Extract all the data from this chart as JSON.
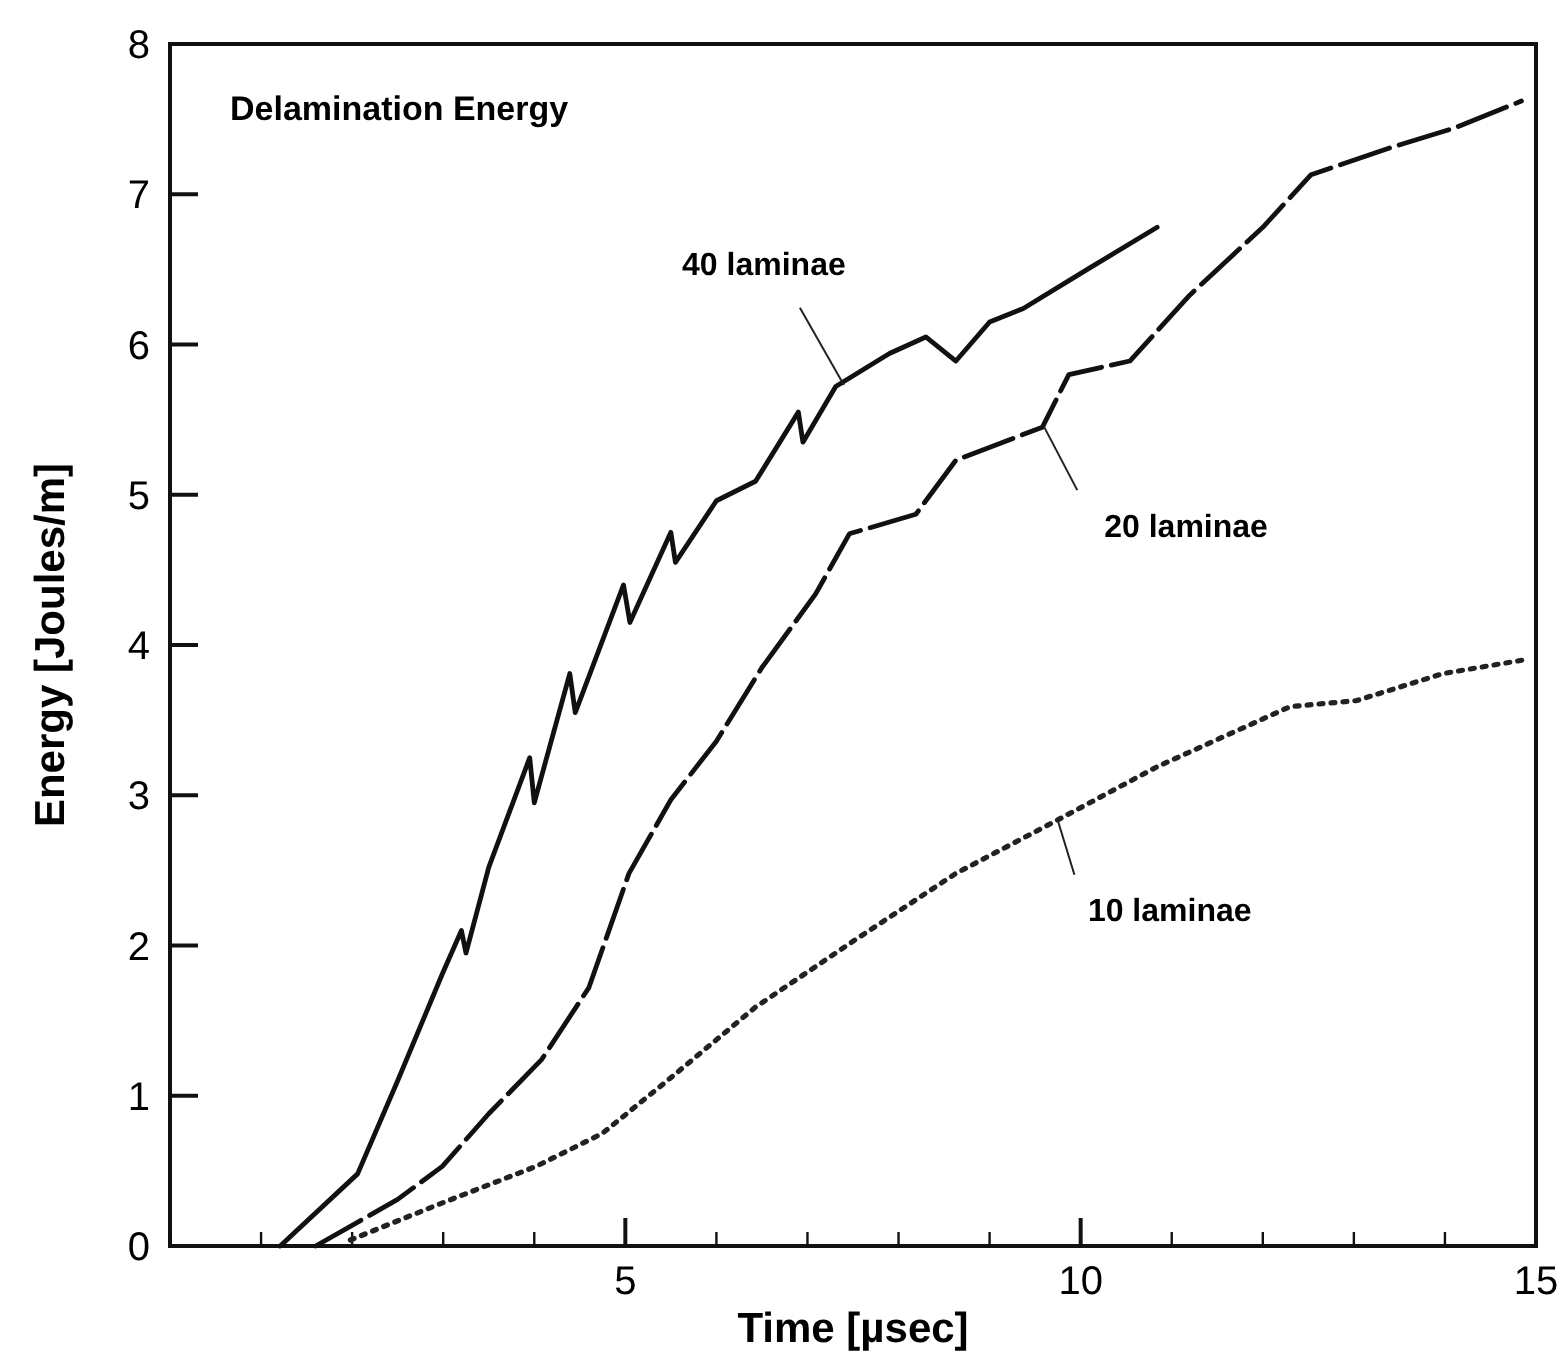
{
  "chart_data": {
    "type": "line",
    "title": "Delamination Energy",
    "xlabel": "Time [µsec]",
    "ylabel": "Energy [Joules/m]",
    "xlim": [
      0,
      15
    ],
    "ylim": [
      0,
      8
    ],
    "xticks": [
      {
        "value": 0,
        "label": null
      },
      {
        "value": 1,
        "label": null
      },
      {
        "value": 2,
        "label": null
      },
      {
        "value": 3,
        "label": null
      },
      {
        "value": 4,
        "label": null
      },
      5,
      {
        "value": 6,
        "label": null
      },
      {
        "value": 7,
        "label": null
      },
      {
        "value": 8,
        "label": null
      },
      {
        "value": 9,
        "label": null
      },
      10,
      {
        "value": 11,
        "label": null
      },
      {
        "value": 12,
        "label": null
      },
      {
        "value": 13,
        "label": null
      },
      {
        "value": 14,
        "label": null
      },
      15
    ],
    "yticks": [
      0,
      1,
      2,
      3,
      4,
      5,
      6,
      7,
      8
    ],
    "grid": false,
    "marker": "none",
    "series": [
      {
        "color": "#111111",
        "line_style": "solid",
        "x": [
          1.21,
          2.06,
          2.5,
          2.99,
          3.2,
          3.25,
          3.5,
          3.95,
          4.0,
          4.39,
          4.45,
          4.98,
          5.05,
          5.5,
          5.55,
          6.0,
          6.43,
          6.9,
          6.95,
          7.31,
          7.9,
          8.3,
          8.63,
          9.0,
          9.37,
          10.1,
          10.84
        ],
        "values": [
          0,
          0.48,
          1.1,
          1.81,
          2.1,
          1.95,
          2.52,
          3.25,
          2.95,
          3.81,
          3.55,
          4.4,
          4.15,
          4.75,
          4.55,
          4.96,
          5.09,
          5.55,
          5.35,
          5.72,
          5.94,
          6.05,
          5.89,
          6.15,
          6.24,
          6.51,
          6.78
        ]
      },
      {
        "color": "#111111",
        "line_style": "dashed",
        "x": [
          1.6,
          2.5,
          2.99,
          3.5,
          4.08,
          4.6,
          5.04,
          5.5,
          6.0,
          6.5,
          7.09,
          7.46,
          8.19,
          8.63,
          9.58,
          9.87,
          10.54,
          11.2,
          12.0,
          12.53,
          13.4,
          14.1,
          14.84
        ],
        "values": [
          0,
          0.31,
          0.53,
          0.88,
          1.24,
          1.72,
          2.48,
          2.97,
          3.36,
          3.85,
          4.34,
          4.74,
          4.87,
          5.23,
          5.45,
          5.8,
          5.89,
          6.33,
          6.78,
          7.13,
          7.31,
          7.44,
          7.62
        ]
      },
      {
        "color": "#222222",
        "line_style": "dotted",
        "x": [
          1.98,
          2.92,
          4.02,
          4.75,
          5.48,
          6.43,
          7.31,
          7.53,
          8.63,
          9.73,
          10.84,
          12.3,
          13.03,
          13.98,
          14.86
        ],
        "values": [
          0.04,
          0.27,
          0.53,
          0.75,
          1.11,
          1.59,
          1.95,
          2.04,
          2.48,
          2.83,
          3.19,
          3.59,
          3.63,
          3.81,
          3.9
        ]
      }
    ],
    "annotations": [
      {
        "text": "40 laminae",
        "x": 7.4,
        "y": 5.73
      },
      {
        "text": "20 laminae",
        "x": 9.6,
        "y": 5.45
      },
      {
        "text": "10 laminae",
        "x": 9.75,
        "y": 2.83
      }
    ]
  }
}
